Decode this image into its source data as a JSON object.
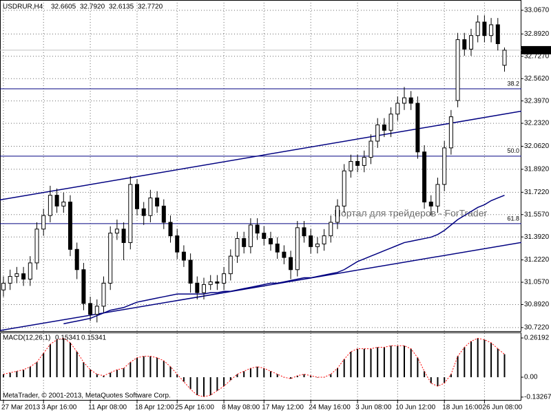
{
  "chart_data": {
    "type": "candlestick",
    "title": "USDRUR,H4",
    "ohlc_labels": [
      "32.6605",
      "32.7920",
      "32.6135",
      "32.7720"
    ],
    "categories": [
      "27 Mar 2013",
      null,
      null,
      null,
      null,
      null,
      "3 Apr 16:00",
      null,
      null,
      null,
      null,
      null,
      null,
      "11 Apr 08:00",
      null,
      null,
      null,
      null,
      null,
      null,
      "18 Apr 12:00",
      null,
      null,
      null,
      null,
      null,
      "25 Apr 16:00",
      null,
      null,
      null,
      null,
      null,
      null,
      "8 May 08:00",
      null,
      null,
      null,
      null,
      null,
      "17 May 12:00",
      null,
      null,
      null,
      null,
      null,
      null,
      "24 May 16:00",
      null,
      null,
      null,
      null,
      null,
      null,
      "3 Jun 08:00",
      null,
      null,
      null,
      null,
      null,
      "10 Jun 12:00",
      null,
      null,
      null,
      null,
      null,
      null,
      "18 Jun 16:00",
      null,
      null,
      null,
      null,
      null,
      "26 Jun 08:00",
      null,
      null,
      null
    ],
    "open": [
      31.0,
      31.05,
      31.1,
      31.12,
      31.08,
      31.2,
      31.45,
      31.55,
      31.7,
      31.62,
      31.65,
      31.3,
      31.15,
      30.9,
      30.82,
      30.88,
      31.05,
      31.42,
      31.45,
      31.35,
      31.78,
      31.6,
      31.55,
      31.68,
      31.62,
      31.5,
      31.4,
      31.28,
      31.22,
      31.05,
      30.98,
      31.04,
      31.06,
      31.05,
      31.12,
      31.25,
      31.38,
      31.32,
      31.48,
      31.42,
      31.38,
      31.34,
      31.28,
      31.24,
      31.15,
      31.46,
      31.4,
      31.32,
      31.34,
      31.4,
      31.5,
      31.62,
      31.88,
      31.95,
      31.92,
      31.98,
      32.1,
      32.22,
      32.18,
      32.3,
      32.38,
      32.42,
      32.38,
      32.02,
      31.65,
      31.62,
      31.78,
      32.05,
      32.4,
      32.85,
      32.78,
      32.88,
      32.98,
      32.88,
      32.96,
      32.6605
    ],
    "high": [
      31.1,
      31.15,
      31.17,
      31.17,
      31.25,
      31.5,
      31.6,
      31.77,
      31.75,
      31.72,
      31.7,
      31.35,
      31.2,
      30.95,
      30.93,
      31.1,
      31.47,
      31.52,
      31.5,
      31.84,
      31.82,
      31.65,
      31.74,
      31.73,
      31.67,
      31.55,
      31.45,
      31.33,
      31.27,
      31.1,
      31.09,
      31.11,
      31.11,
      31.17,
      31.3,
      31.43,
      31.43,
      31.53,
      31.53,
      31.47,
      31.43,
      31.39,
      31.33,
      31.29,
      31.51,
      31.51,
      31.45,
      31.39,
      31.45,
      31.55,
      31.67,
      31.93,
      32.0,
      32.0,
      32.03,
      32.15,
      32.27,
      32.27,
      32.35,
      32.43,
      32.5,
      32.47,
      32.43,
      32.07,
      31.7,
      31.83,
      32.1,
      32.33,
      32.9,
      32.9,
      32.93,
      33.03,
      33.03,
      33.01,
      33.01,
      32.792
    ],
    "low": [
      30.95,
      31.0,
      31.05,
      31.03,
      31.03,
      31.15,
      31.4,
      31.5,
      31.57,
      31.57,
      31.25,
      31.08,
      30.85,
      30.77,
      30.76,
      30.83,
      31.0,
      31.37,
      31.22,
      31.3,
      31.55,
      31.48,
      31.5,
      31.57,
      31.45,
      31.35,
      31.23,
      31.17,
      30.98,
      30.93,
      30.93,
      31.0,
      31.0,
      31.0,
      31.07,
      31.2,
      31.27,
      31.27,
      31.37,
      31.33,
      31.29,
      31.23,
      31.19,
      31.08,
      31.1,
      31.35,
      31.27,
      31.27,
      31.29,
      31.35,
      31.45,
      31.57,
      31.83,
      31.87,
      31.87,
      31.93,
      32.05,
      32.13,
      32.13,
      32.25,
      32.33,
      32.33,
      31.97,
      31.6,
      31.55,
      31.57,
      31.73,
      32.0,
      32.35,
      32.73,
      32.73,
      32.83,
      32.83,
      32.83,
      32.77,
      32.6135
    ],
    "close": [
      31.05,
      31.1,
      31.12,
      31.08,
      31.2,
      31.45,
      31.55,
      31.7,
      31.62,
      31.65,
      31.3,
      31.15,
      30.9,
      30.82,
      30.88,
      31.05,
      31.42,
      31.45,
      31.35,
      31.78,
      31.6,
      31.55,
      31.68,
      31.62,
      31.5,
      31.4,
      31.28,
      31.22,
      31.05,
      30.98,
      31.04,
      31.06,
      31.05,
      31.12,
      31.25,
      31.38,
      31.32,
      31.48,
      31.42,
      31.38,
      31.34,
      31.28,
      31.24,
      31.15,
      31.46,
      31.4,
      31.32,
      31.34,
      31.4,
      31.5,
      31.62,
      31.88,
      31.95,
      31.92,
      31.98,
      32.1,
      32.22,
      32.18,
      32.3,
      32.38,
      32.42,
      32.38,
      32.02,
      31.65,
      31.62,
      31.78,
      32.05,
      32.28,
      32.85,
      32.78,
      32.88,
      32.98,
      32.88,
      32.96,
      32.82,
      32.772
    ],
    "ylim": [
      30.696,
      33.143
    ],
    "yticks": [
      {
        "value": 33.067,
        "label": "33.0670"
      },
      {
        "value": 32.892,
        "label": "32.8920"
      },
      {
        "value": 32.727,
        "label": "32.7270"
      },
      {
        "value": 32.562,
        "label": "32.5620"
      },
      {
        "value": 32.397,
        "label": "32.3970"
      },
      {
        "value": 32.232,
        "label": "32.2320"
      },
      {
        "value": 32.062,
        "label": "32.0620"
      },
      {
        "value": 31.892,
        "label": "31.8920"
      },
      {
        "value": 31.722,
        "label": "31.7220"
      },
      {
        "value": 31.557,
        "label": "31.5570"
      },
      {
        "value": 31.392,
        "label": "31.3920"
      },
      {
        "value": 31.222,
        "label": "31.2220"
      },
      {
        "value": 31.057,
        "label": "31.0570"
      },
      {
        "value": 30.892,
        "label": "30.8920"
      },
      {
        "value": 30.722,
        "label": "30.7220"
      }
    ],
    "grid": true,
    "ma": {
      "color": "#000080",
      "values": [
        null,
        null,
        null,
        null,
        null,
        null,
        null,
        null,
        null,
        30.75,
        30.76,
        30.77,
        30.78,
        30.79,
        30.81,
        30.83,
        30.85,
        30.86,
        30.87,
        30.89,
        30.91,
        30.92,
        30.93,
        30.94,
        30.95,
        30.96,
        30.97,
        30.97,
        30.97,
        30.97,
        30.97,
        30.98,
        30.98,
        30.99,
        30.99,
        31.0,
        31.01,
        31.02,
        31.03,
        31.04,
        31.05,
        31.05,
        31.06,
        31.07,
        31.08,
        31.09,
        31.09,
        31.1,
        31.11,
        31.12,
        31.13,
        31.15,
        31.18,
        31.21,
        31.23,
        31.25,
        31.27,
        31.29,
        31.31,
        31.33,
        31.35,
        31.36,
        31.37,
        31.38,
        31.39,
        31.41,
        31.44,
        31.48,
        31.52,
        31.55,
        31.58,
        31.61,
        31.63,
        31.66,
        31.68,
        31.7
      ]
    },
    "trendlines": [
      {
        "color": "#000080",
        "x": [
          0,
          75
        ],
        "values": [
          31.67,
          32.3
        ]
      },
      {
        "color": "#000080",
        "x": [
          0,
          75
        ],
        "values": [
          30.705,
          31.33
        ]
      }
    ],
    "levels": [
      {
        "price": 32.487,
        "label": "38.2",
        "color": "#000080"
      },
      {
        "price": 31.989,
        "label": "50.0",
        "color": "#000080"
      },
      {
        "price": 31.49,
        "label": "61.8",
        "color": "#000080"
      }
    ],
    "last_price": {
      "value": 32.772,
      "label": "32.7720"
    },
    "watermark": "Портал для трейдеров - ForTrader",
    "footer": "MetaTrader, © 2001-2013, MetaQuotes Software Corp.",
    "macd": {
      "title": "MACD(12,26,1)",
      "values": [
        0.02,
        0.03,
        0.04,
        0.05,
        0.07,
        0.1,
        0.16,
        0.22,
        0.25,
        0.26,
        0.23,
        0.17,
        0.1,
        0.05,
        0.02,
        0.01,
        0.03,
        0.05,
        0.06,
        0.1,
        0.13,
        0.14,
        0.14,
        0.13,
        0.11,
        0.07,
        0.02,
        -0.03,
        -0.08,
        -0.12,
        -0.13,
        -0.12,
        -0.09,
        -0.06,
        -0.02,
        0.02,
        0.04,
        0.06,
        0.07,
        0.06,
        0.04,
        0.02,
        0.0,
        -0.01,
        0.01,
        0.02,
        0.01,
        0.0,
        0.0,
        0.02,
        0.06,
        0.12,
        0.17,
        0.19,
        0.19,
        0.19,
        0.2,
        0.2,
        0.21,
        0.21,
        0.21,
        0.19,
        0.13,
        0.04,
        -0.04,
        -0.06,
        -0.04,
        0.02,
        0.14,
        0.2,
        0.24,
        0.26,
        0.25,
        0.23,
        0.19,
        0.15341
      ],
      "signal": [
        0.02,
        0.03,
        0.04,
        0.05,
        0.07,
        0.1,
        0.16,
        0.22,
        0.25,
        0.26,
        0.23,
        0.17,
        0.1,
        0.05,
        0.02,
        0.01,
        0.03,
        0.05,
        0.06,
        0.1,
        0.13,
        0.14,
        0.14,
        0.13,
        0.11,
        0.07,
        0.02,
        -0.03,
        -0.08,
        -0.12,
        -0.13,
        -0.12,
        -0.09,
        -0.06,
        -0.02,
        0.02,
        0.04,
        0.06,
        0.07,
        0.06,
        0.04,
        0.02,
        0.0,
        -0.01,
        0.01,
        0.02,
        0.01,
        0.0,
        0.0,
        0.02,
        0.06,
        0.12,
        0.17,
        0.19,
        0.19,
        0.19,
        0.2,
        0.2,
        0.21,
        0.21,
        0.21,
        0.19,
        0.13,
        0.04,
        -0.04,
        -0.06,
        -0.04,
        0.02,
        0.14,
        0.2,
        0.24,
        0.26,
        0.25,
        0.23,
        0.19,
        0.15341
      ],
      "signal_color": "#ff0000",
      "ylim": [
        -0.1516,
        0.2941
      ],
      "yticks": [
        0.26192,
        {
          "value": 0,
          "label": "0.00"
        },
        -0.13267
      ]
    }
  }
}
